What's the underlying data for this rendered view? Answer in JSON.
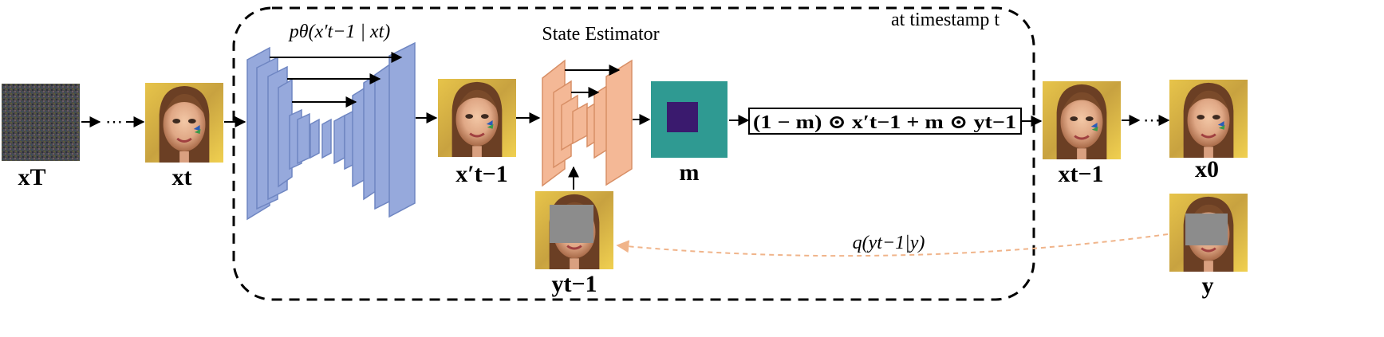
{
  "frame_label": "at timestamp t",
  "estimator_label": "State Estimator",
  "denoiser_label": "pθ(x′t−1 | xt)",
  "node_labels": {
    "xT": "xT",
    "xt": "xt",
    "x_prime": "x′t−1",
    "m": "m",
    "x_t_minus_1": "xt−1",
    "x0": "x0",
    "y_t_minus_1": "yt−1",
    "y": "y"
  },
  "combine_formula": "(1 − m) ⊙ x′t−1 + m ⊙ yt−1",
  "sampling_label": "q(yt−1|y)",
  "ellipsis": "⋯",
  "colors": {
    "denoiser_fill": "#96a9dc",
    "denoiser_stroke": "#6f86c2",
    "estimator_fill": "#f4b896",
    "estimator_stroke": "#d88f66",
    "mask_bg": "#2f9a92",
    "mask_hole": "#3a1a6e",
    "dashed_frame": "#000000",
    "sampling_arrow": "#f0b48a",
    "mask_patch": "#8c8c8c"
  }
}
